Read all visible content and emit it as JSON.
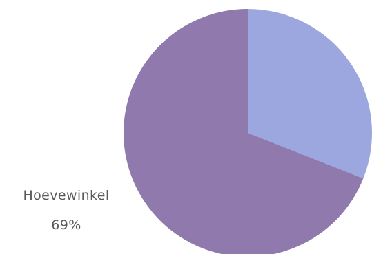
{
  "chart_data": {
    "type": "pie",
    "title": "",
    "slices": [
      {
        "name": "",
        "value": 31,
        "value_label": "",
        "color": "#9ba7de"
      },
      {
        "name": "Hoevewinkel",
        "value": 69,
        "value_label": "69%",
        "color": "#8f79ad"
      }
    ],
    "start_angle_deg": 0,
    "direction": "clockwise",
    "legend": "none"
  }
}
